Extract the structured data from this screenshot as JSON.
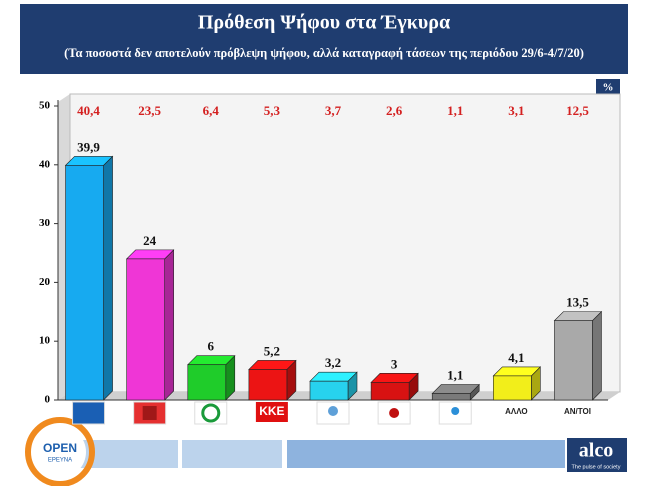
{
  "chart_data": {
    "type": "bar3d",
    "title": "Πρόθεση Ψήφου στα Έγκυρα",
    "subtitle": "(Τα ποσοστά δεν αποτελούν πρόβλεψη ψήφου, αλλά καταγραφή τάσεων της περιόδου 29/6-4/7/20)",
    "unit": "%",
    "categories": [
      null,
      null,
      null,
      "ΚΚΕ",
      null,
      null,
      null,
      "ΑΛΛΟ",
      "ΑΝ/ΤΟΙ"
    ],
    "values": [
      39.9,
      24,
      6,
      5.2,
      3.2,
      3,
      1.1,
      4.1,
      13.5
    ],
    "value_labels": [
      "39,9",
      "24",
      "6",
      "5,2",
      "3,2",
      "3",
      "1,1",
      "4,1",
      "13,5"
    ],
    "colors": [
      "#17aaf0",
      "#ef36d6",
      "#1fcc2a",
      "#ec1414",
      "#27d2ee",
      "#d81212",
      "#7a7a7a",
      "#f2ee1a",
      "#a9a9a9"
    ],
    "previous": {
      "values": [
        40.4,
        23.5,
        6.4,
        5.3,
        3.7,
        2.6,
        1.1,
        3.1,
        12.5
      ],
      "value_labels": [
        "40,4",
        "23,5",
        "6,4",
        "5,3",
        "3,7",
        "2,6",
        "1,1",
        "3,1",
        "12,5"
      ],
      "color": "#d42020"
    },
    "ylim": [
      0,
      50
    ],
    "yticks": [
      0,
      10,
      20,
      30,
      40,
      50
    ],
    "grid": false
  },
  "footer": {
    "channel": "OPEN",
    "channel_sub": "ΕΡΕΥΝΑ",
    "brand": "alco",
    "tagline": "The pulse of society"
  }
}
